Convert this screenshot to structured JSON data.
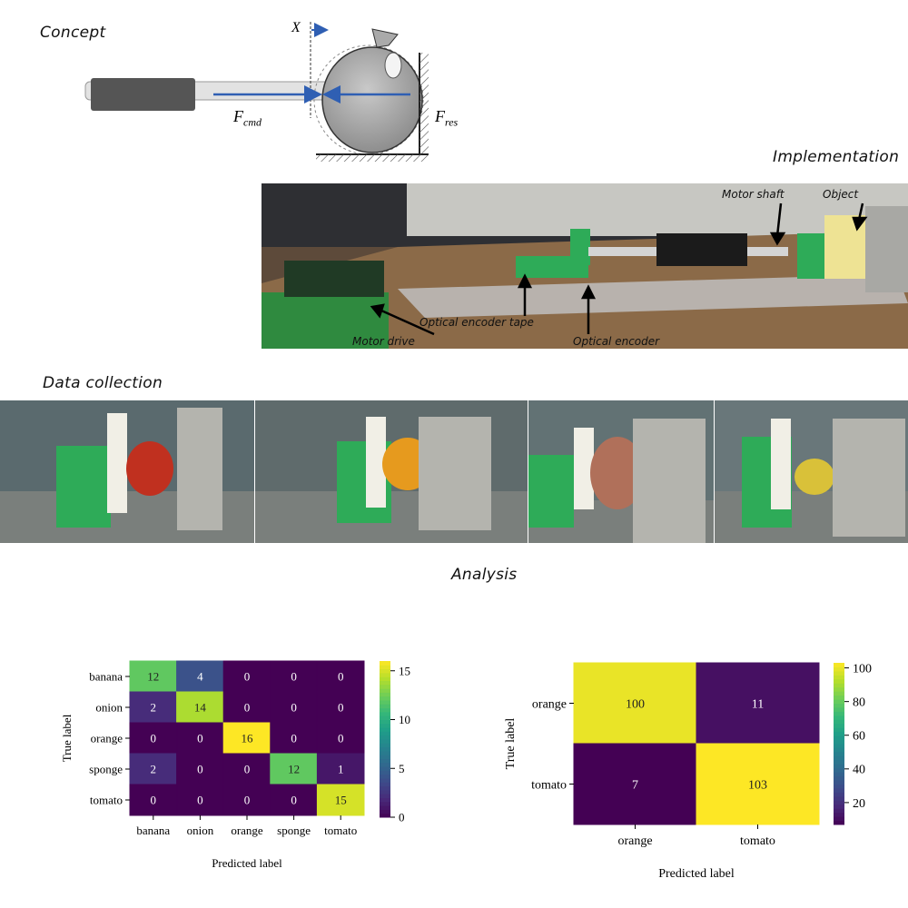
{
  "sections": {
    "concept": "Concept",
    "implementation": "Implementation",
    "data_collection": "Data collection",
    "analysis": "Analysis"
  },
  "concept": {
    "x_label": "X",
    "f_cmd": "F",
    "f_cmd_sub": "cmd",
    "f_res": "F",
    "f_res_sub": "res"
  },
  "implementation": {
    "motor_shaft": "Motor shaft",
    "object": "Object",
    "encoder_tape": "Optical encoder tape",
    "encoder": "Optical encoder",
    "motor_drive": "Motor drive"
  },
  "colors": {
    "viridis_low": "#440154",
    "viridis_high": "#fde725",
    "arrow_blue": "#2f5fb3"
  },
  "chart_data": [
    {
      "type": "heatmap",
      "title": "",
      "xlabel": "Predicted label",
      "ylabel": "True label",
      "categories": [
        "banana",
        "onion",
        "orange",
        "sponge",
        "tomato"
      ],
      "values": [
        [
          12,
          4,
          0,
          0,
          0
        ],
        [
          2,
          14,
          0,
          0,
          0
        ],
        [
          0,
          0,
          16,
          0,
          0
        ],
        [
          2,
          0,
          0,
          12,
          1
        ],
        [
          0,
          0,
          0,
          0,
          15
        ]
      ],
      "colorbar": {
        "min": 0,
        "max": 16,
        "ticks": [
          0,
          5,
          10,
          15
        ]
      }
    },
    {
      "type": "heatmap",
      "title": "",
      "xlabel": "Predicted label",
      "ylabel": "True label",
      "categories": [
        "orange",
        "tomato"
      ],
      "values": [
        [
          100,
          11
        ],
        [
          7,
          103
        ]
      ],
      "colorbar": {
        "min": 7,
        "max": 103,
        "ticks": [
          20,
          40,
          60,
          80,
          100
        ]
      }
    }
  ]
}
